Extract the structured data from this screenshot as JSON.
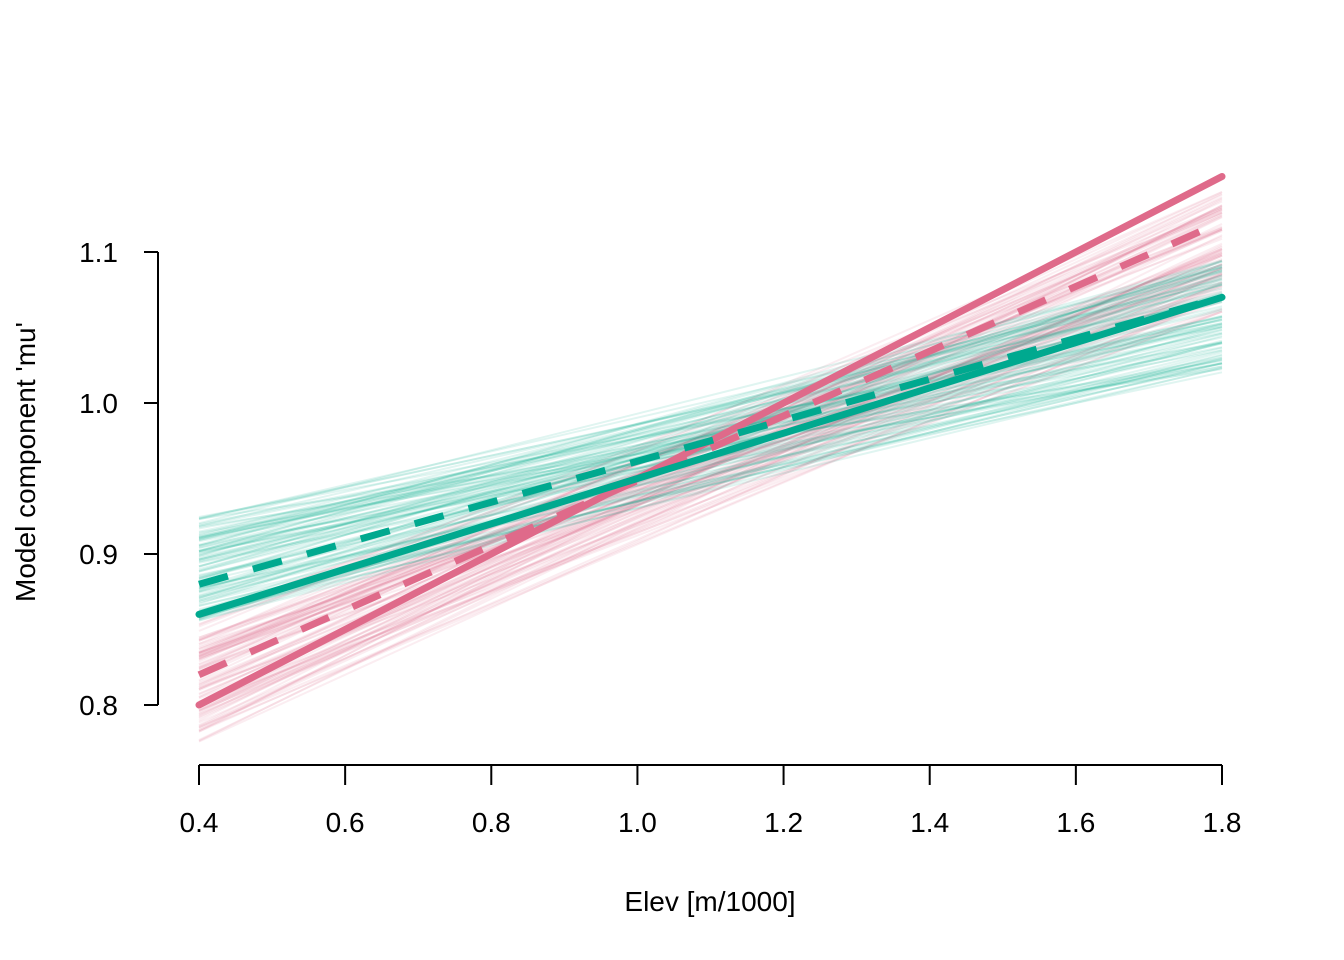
{
  "chart_data": {
    "type": "line",
    "title": "",
    "xlabel": "Elev [m/1000]",
    "ylabel": "Model component 'mu'",
    "xlim": [
      0.4,
      1.8
    ],
    "ylim": [
      0.8,
      1.1
    ],
    "xticks": [
      0.4,
      0.6,
      0.8,
      1.0,
      1.2,
      1.4,
      1.6,
      1.8
    ],
    "xtick_labels": [
      "0.4",
      "0.6",
      "0.8",
      "1.0",
      "1.2",
      "1.4",
      "1.6",
      "1.8"
    ],
    "yticks": [
      0.8,
      0.9,
      1.0,
      1.1
    ],
    "ytick_labels": [
      "0.8",
      "0.9",
      "1.0",
      "1.1"
    ],
    "grid": false,
    "legend": "none",
    "colors": {
      "pink": "#DF6A8A",
      "teal": "#00A98F"
    },
    "series": [
      {
        "color": "#DF6A8A",
        "style": "solid",
        "x": [
          0.4,
          1.8
        ],
        "y": [
          0.8,
          1.15
        ]
      },
      {
        "color": "#DF6A8A",
        "style": "dashed",
        "x": [
          0.4,
          1.8
        ],
        "y": [
          0.82,
          1.12
        ]
      },
      {
        "color": "#00A98F",
        "style": "solid",
        "x": [
          0.4,
          1.8
        ],
        "y": [
          0.86,
          1.07
        ]
      },
      {
        "color": "#00A98F",
        "style": "dashed",
        "x": [
          0.4,
          1.8
        ],
        "y": [
          0.88,
          1.07
        ]
      }
    ],
    "samples": {
      "pink": {
        "color": "#DF6A8A",
        "count": 100,
        "y_start_range": [
          0.775,
          0.86
        ],
        "y_end_range": [
          1.06,
          1.14
        ]
      },
      "teal": {
        "color": "#00A98F",
        "count": 100,
        "y_start_range": [
          0.855,
          0.925
        ],
        "y_end_range": [
          1.02,
          1.095
        ]
      }
    }
  }
}
